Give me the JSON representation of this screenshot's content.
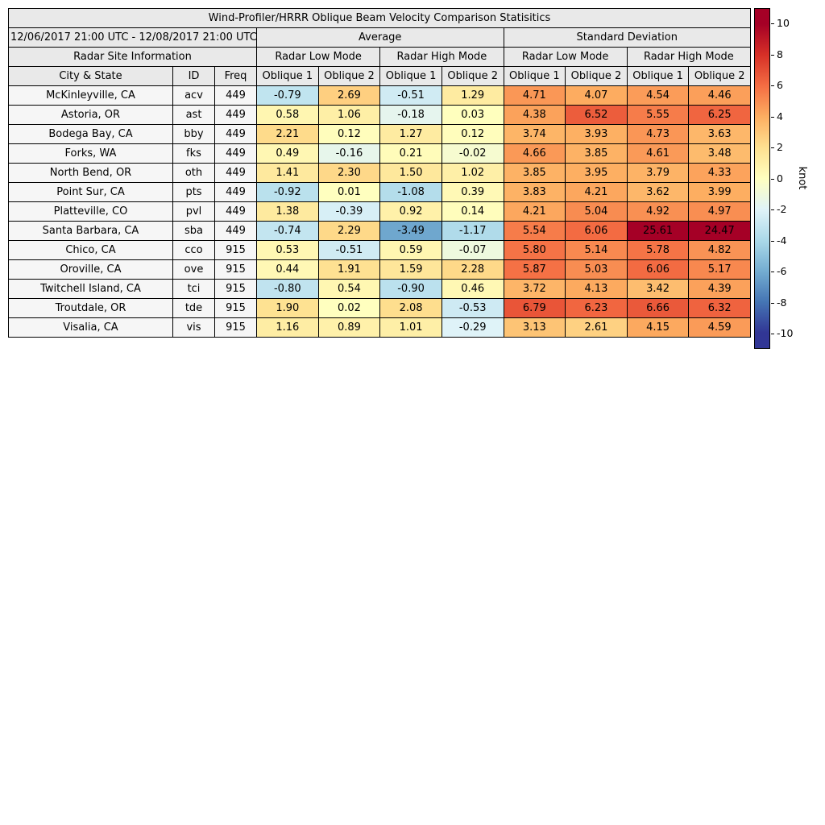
{
  "title": "Wind-Profiler/HRRR Oblique Beam Velocity Comparison Statisitics",
  "header": {
    "date_range": "12/06/2017 21:00 UTC - 12/08/2017 21:00 UTC",
    "group_average": "Average",
    "group_std": "Standard Deviation",
    "site_info": "Radar Site Information",
    "mode_labels": [
      "Radar Low Mode",
      "Radar High Mode",
      "Radar Low Mode",
      "Radar High Mode"
    ],
    "col_headers": [
      "City & State",
      "ID",
      "Freq",
      "Oblique 1",
      "Oblique 2",
      "Oblique 1",
      "Oblique 2",
      "Oblique 1",
      "Oblique 2",
      "Oblique 1",
      "Oblique 2"
    ]
  },
  "colorbar": {
    "label": "knot",
    "min": -10,
    "max": 10,
    "ticks": [
      10,
      8,
      6,
      4,
      2,
      0,
      -2,
      -4,
      -6,
      -8,
      -10
    ],
    "colors": [
      "#313695",
      "#4575b4",
      "#74add1",
      "#abd9e9",
      "#e0f3f8",
      "#ffffbf",
      "#fee090",
      "#fdae61",
      "#f46d43",
      "#d73027",
      "#a50026"
    ]
  },
  "chart_data": {
    "type": "heatmap",
    "title": "Wind-Profiler/HRRR Oblique Beam Velocity Comparison Statisitics",
    "date_range": "12/06/2017 21:00 UTC - 12/08/2017 21:00 UTC",
    "units": "knot",
    "colorbar_range": [
      -10,
      10
    ],
    "columns": [
      "Average / Radar Low Mode / Oblique 1",
      "Average / Radar Low Mode / Oblique 2",
      "Average / Radar High Mode / Oblique 1",
      "Average / Radar High Mode / Oblique 2",
      "Standard Deviation / Radar Low Mode / Oblique 1",
      "Standard Deviation / Radar Low Mode / Oblique 2",
      "Standard Deviation / Radar High Mode / Oblique 1",
      "Standard Deviation / Radar High Mode / Oblique 2"
    ],
    "rows": [
      {
        "city": "McKinleyville, CA",
        "id": "acv",
        "freq": "449",
        "values": [
          -0.79,
          2.69,
          -0.51,
          1.29,
          4.71,
          4.07,
          4.54,
          4.46
        ]
      },
      {
        "city": "Astoria, OR",
        "id": "ast",
        "freq": "449",
        "values": [
          0.58,
          1.06,
          -0.18,
          0.03,
          4.38,
          6.52,
          5.55,
          6.25
        ]
      },
      {
        "city": "Bodega Bay, CA",
        "id": "bby",
        "freq": "449",
        "values": [
          2.21,
          0.12,
          1.27,
          0.12,
          3.74,
          3.93,
          4.73,
          3.63
        ]
      },
      {
        "city": "Forks, WA",
        "id": "fks",
        "freq": "449",
        "values": [
          0.49,
          -0.16,
          0.21,
          -0.02,
          4.66,
          3.85,
          4.61,
          3.48
        ]
      },
      {
        "city": "North Bend, OR",
        "id": "oth",
        "freq": "449",
        "values": [
          1.41,
          2.3,
          1.5,
          1.02,
          3.85,
          3.95,
          3.79,
          4.33
        ]
      },
      {
        "city": "Point Sur, CA",
        "id": "pts",
        "freq": "449",
        "values": [
          -0.92,
          0.01,
          -1.08,
          0.39,
          3.83,
          4.21,
          3.62,
          3.99
        ]
      },
      {
        "city": "Platteville, CO",
        "id": "pvl",
        "freq": "449",
        "values": [
          1.38,
          -0.39,
          0.92,
          0.14,
          4.21,
          5.04,
          4.92,
          4.97
        ]
      },
      {
        "city": "Santa Barbara, CA",
        "id": "sba",
        "freq": "449",
        "values": [
          -0.74,
          2.29,
          -3.49,
          -1.17,
          5.54,
          6.06,
          25.61,
          24.47
        ]
      },
      {
        "city": "Chico, CA",
        "id": "cco",
        "freq": "915",
        "values": [
          0.53,
          -0.51,
          0.59,
          -0.07,
          5.8,
          5.14,
          5.78,
          4.82
        ]
      },
      {
        "city": "Oroville, CA",
        "id": "ove",
        "freq": "915",
        "values": [
          0.44,
          1.91,
          1.59,
          2.28,
          5.87,
          5.03,
          6.06,
          5.17
        ]
      },
      {
        "city": "Twitchell Island, CA",
        "id": "tci",
        "freq": "915",
        "values": [
          -0.8,
          0.54,
          -0.9,
          0.46,
          3.72,
          4.13,
          3.42,
          4.39
        ]
      },
      {
        "city": "Troutdale, OR",
        "id": "tde",
        "freq": "915",
        "values": [
          1.9,
          0.02,
          2.08,
          -0.53,
          6.79,
          6.23,
          6.66,
          6.32
        ]
      },
      {
        "city": "Visalia, CA",
        "id": "vis",
        "freq": "915",
        "values": [
          1.16,
          0.89,
          1.01,
          -0.29,
          3.13,
          2.61,
          4.15,
          4.59
        ]
      }
    ]
  }
}
